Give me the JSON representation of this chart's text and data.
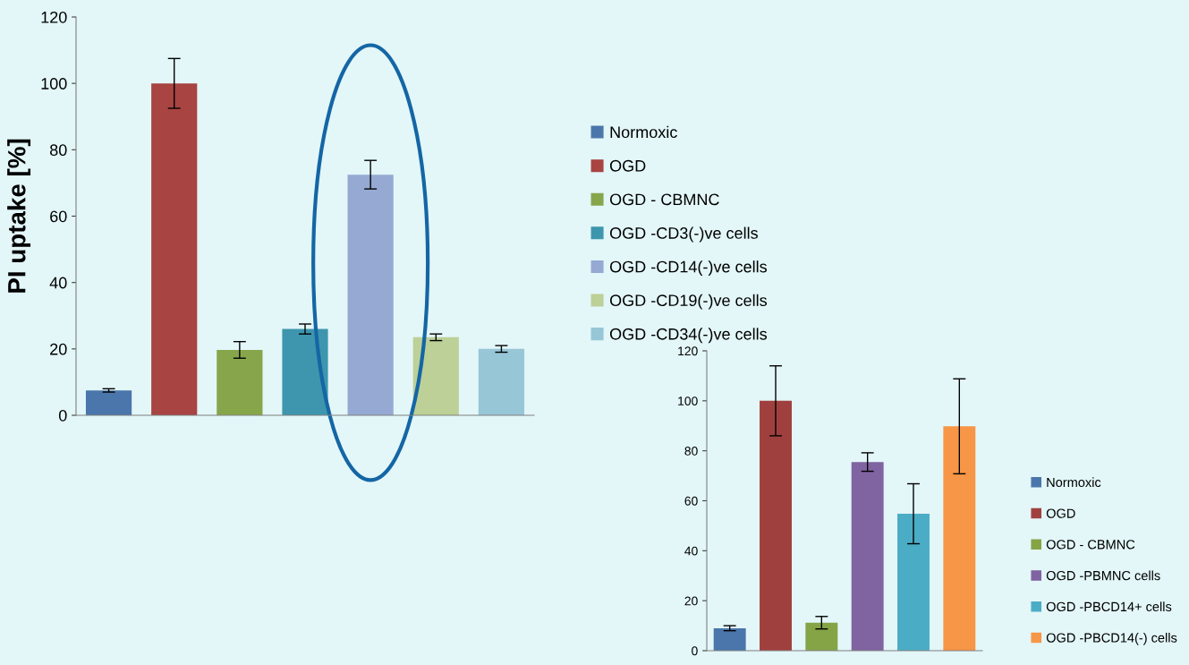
{
  "chart_data": [
    {
      "type": "bar",
      "ylabel": "PI uptake [%]",
      "categories": [
        null,
        null,
        null,
        null,
        null,
        null,
        null
      ],
      "ylim": [
        0,
        120
      ],
      "yticks": [
        0,
        20,
        40,
        60,
        80,
        100,
        120
      ],
      "grid": false,
      "legend": "right",
      "series": [
        {
          "name": "Normoxic",
          "color": "#4a76ab",
          "values": [
            7.5,
            null,
            null,
            null,
            null,
            null,
            null
          ],
          "errors": [
            0.5,
            null,
            null,
            null,
            null,
            null,
            null
          ]
        },
        {
          "name": "OGD",
          "color": "#a84442",
          "values": [
            null,
            100,
            null,
            null,
            null,
            null,
            null
          ],
          "errors": [
            null,
            7.5,
            null,
            null,
            null,
            null,
            null
          ]
        },
        {
          "name": "OGD - CBMNC",
          "color": "#87a64c",
          "values": [
            null,
            null,
            19.7,
            null,
            null,
            null,
            null
          ],
          "errors": [
            null,
            null,
            2.5,
            null,
            null,
            null,
            null
          ]
        },
        {
          "name": "OGD -CD3(-)ve cells",
          "color": "#3d96ad",
          "values": [
            null,
            null,
            null,
            26,
            null,
            null,
            null
          ],
          "errors": [
            null,
            null,
            null,
            1.5,
            null,
            null,
            null
          ]
        },
        {
          "name": "OGD -CD14(-)ve cells",
          "color": "#95a9d3",
          "values": [
            null,
            null,
            null,
            null,
            72.5,
            null,
            null
          ],
          "errors": [
            null,
            null,
            null,
            null,
            4.3,
            null,
            null
          ]
        },
        {
          "name": "OGD -CD19(-)ve cells",
          "color": "#bcd097",
          "values": [
            null,
            null,
            null,
            null,
            null,
            23.5,
            null
          ],
          "errors": [
            null,
            null,
            null,
            null,
            null,
            1,
            null
          ]
        },
        {
          "name": "OGD -CD34(-)ve cells",
          "color": "#97c6d6",
          "values": [
            null,
            null,
            null,
            null,
            null,
            null,
            20
          ],
          "errors": [
            null,
            null,
            null,
            null,
            null,
            null,
            1
          ]
        }
      ]
    },
    {
      "type": "bar",
      "categories": [
        null,
        null,
        null,
        null,
        null,
        null
      ],
      "ylim": [
        0,
        120
      ],
      "yticks": [
        0,
        20,
        40,
        60,
        80,
        100,
        120
      ],
      "grid": false,
      "legend": "right",
      "series": [
        {
          "name": "Normoxic",
          "color": "#4a76ab",
          "values": [
            9,
            null,
            null,
            null,
            null,
            null
          ],
          "errors": [
            1,
            null,
            null,
            null,
            null,
            null
          ]
        },
        {
          "name": "OGD",
          "color": "#a0403e",
          "values": [
            null,
            100,
            null,
            null,
            null,
            null
          ],
          "errors": [
            null,
            14,
            null,
            null,
            null,
            null
          ]
        },
        {
          "name": "OGD - CBMNC",
          "color": "#84a446",
          "values": [
            null,
            null,
            11.2,
            null,
            null,
            null
          ],
          "errors": [
            null,
            null,
            2.5,
            null,
            null,
            null
          ]
        },
        {
          "name": "OGD -PBMNC cells",
          "color": "#8063a1",
          "values": [
            null,
            null,
            null,
            75.5,
            null,
            null
          ],
          "errors": [
            null,
            null,
            null,
            3.7,
            null,
            null
          ]
        },
        {
          "name": "OGD -PBCD14+ cells",
          "color": "#4bacc6",
          "values": [
            null,
            null,
            null,
            null,
            54.8,
            null
          ],
          "errors": [
            null,
            null,
            null,
            null,
            12,
            null
          ]
        },
        {
          "name": "OGD -PBCD14(-) cells",
          "color": "#f79646",
          "values": [
            null,
            null,
            null,
            null,
            null,
            89.8
          ],
          "errors": [
            null,
            null,
            null,
            null,
            null,
            19
          ]
        }
      ]
    }
  ]
}
